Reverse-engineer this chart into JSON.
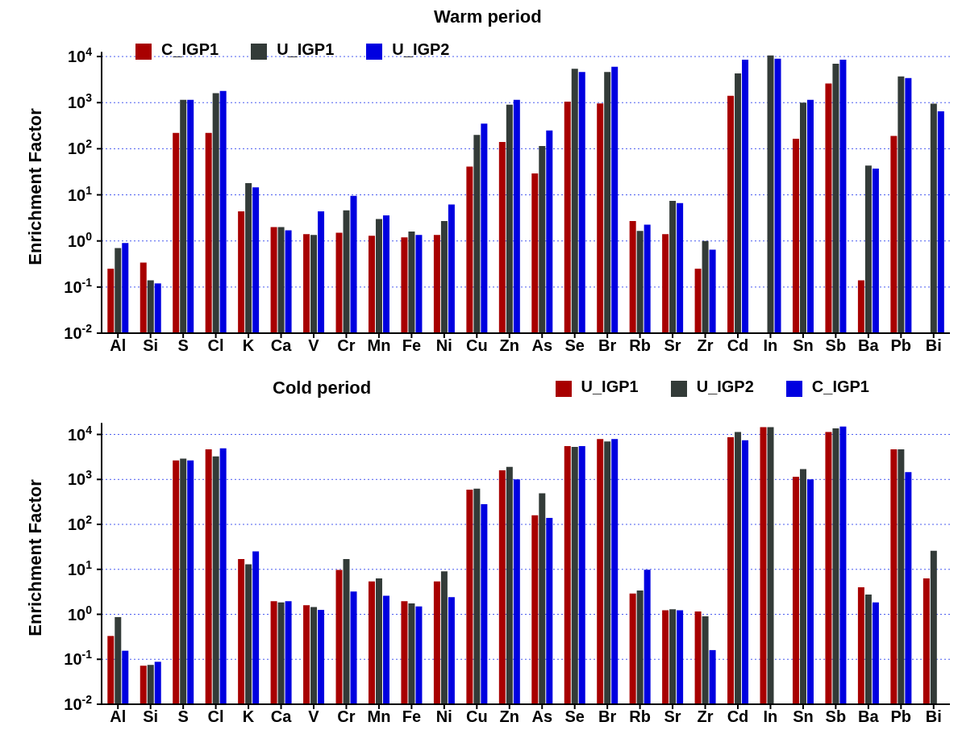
{
  "chart_data": [
    {
      "type": "bar",
      "title": "Warm period",
      "ylabel": "Enrichment Factor",
      "log": "y",
      "grid": "y",
      "legend": "top left",
      "categories": [
        "Al",
        "Si",
        "S",
        "Cl",
        "K",
        "Ca",
        "V",
        "Cr",
        "Mn",
        "Fe",
        "Ni",
        "Cu",
        "Zn",
        "As",
        "Se",
        "Br",
        "Rb",
        "Sr",
        "Zr",
        "Cd",
        "In",
        "Sn",
        "Sb",
        "Ba",
        "Pb",
        "Bi"
      ],
      "ylim": [
        0.01,
        12600
      ],
      "yticks": [
        {
          "value": 0.01,
          "label": "10$^{-2}$"
        },
        {
          "value": 0.1,
          "label": "10$^{-1}$"
        },
        {
          "value": 1,
          "label": "10$^{0}$"
        },
        {
          "value": 10,
          "label": "10$^{1}$"
        },
        {
          "value": 100,
          "label": "10$^{2}$"
        },
        {
          "value": 1000,
          "label": "10$^{3}$"
        },
        {
          "value": 10000,
          "label": "10$^{4}$"
        }
      ],
      "series": [
        {
          "name": "C_IGP1",
          "color": "#a80000",
          "values": [
            0.25,
            0.34,
            220,
            220,
            4.4,
            2.0,
            1.4,
            1.5,
            1.3,
            1.2,
            1.35,
            41,
            140,
            29,
            1050,
            960,
            2.7,
            1.4,
            0.25,
            1400,
            null,
            165,
            2600,
            0.14,
            190,
            null
          ]
        },
        {
          "name": "U_IGP1",
          "color": "#333b38",
          "values": [
            0.7,
            0.14,
            1150,
            1600,
            18,
            2.0,
            1.35,
            4.6,
            3.0,
            1.6,
            2.7,
            200,
            900,
            115,
            5400,
            4600,
            1.65,
            7.4,
            1.0,
            4300,
            10500,
            1000,
            7000,
            43,
            3700,
            950
          ]
        },
        {
          "name": "U_IGP2",
          "color": "#0000e0",
          "values": [
            0.9,
            0.12,
            1150,
            1800,
            14.5,
            1.7,
            4.4,
            9.5,
            3.6,
            1.35,
            6.2,
            350,
            1150,
            250,
            4600,
            6000,
            2.25,
            6.6,
            0.65,
            8500,
            9000,
            1150,
            8500,
            37,
            3400,
            650
          ]
        }
      ]
    },
    {
      "type": "bar",
      "title": "Cold period",
      "ylabel": "Enrichment Factor",
      "log": "y",
      "grid": "y",
      "legend": "top right",
      "categories": [
        "Al",
        "Si",
        "S",
        "Cl",
        "K",
        "Ca",
        "V",
        "Cr",
        "Mn",
        "Fe",
        "Ni",
        "Cu",
        "Zn",
        "As",
        "Se",
        "Br",
        "Rb",
        "Sr",
        "Zr",
        "Cd",
        "In",
        "Sn",
        "Sb",
        "Ba",
        "Pb",
        "Bi"
      ],
      "ylim": [
        0.01,
        18000
      ],
      "yticks": [
        {
          "value": 0.01,
          "label": "10$^{-2}$"
        },
        {
          "value": 0.1,
          "label": "10$^{-1}$"
        },
        {
          "value": 1,
          "label": "10$^{0}$"
        },
        {
          "value": 10,
          "label": "10$^{1}$"
        },
        {
          "value": 100,
          "label": "10$^{2}$"
        },
        {
          "value": 1000,
          "label": "10$^{3}$"
        },
        {
          "value": 10000,
          "label": "10$^{4}$"
        }
      ],
      "series": [
        {
          "name": "U_IGP1",
          "color": "#a80000",
          "values": [
            0.33,
            0.072,
            2650,
            4650,
            17,
            1.95,
            1.6,
            9.7,
            5.4,
            1.95,
            5.4,
            590,
            1600,
            160,
            5500,
            7900,
            2.9,
            1.23,
            1.16,
            8700,
            14500,
            1150,
            11300,
            4.0,
            4650,
            6.3
          ]
        },
        {
          "name": "U_IGP2",
          "color": "#333b38",
          "values": [
            0.87,
            0.075,
            2900,
            3250,
            13,
            1.85,
            1.45,
            17,
            6.3,
            1.75,
            9.0,
            620,
            1900,
            490,
            5300,
            7000,
            3.4,
            1.3,
            0.9,
            11300,
            14500,
            1700,
            13700,
            2.75,
            4650,
            26
          ]
        },
        {
          "name": "C_IGP1",
          "color": "#0000e0",
          "values": [
            0.155,
            0.088,
            2650,
            4900,
            25,
            1.95,
            1.25,
            3.2,
            2.6,
            1.5,
            2.4,
            280,
            1000,
            140,
            5500,
            7900,
            9.8,
            1.23,
            0.16,
            7400,
            null,
            1000,
            15000,
            1.85,
            1450,
            null
          ]
        }
      ]
    }
  ]
}
